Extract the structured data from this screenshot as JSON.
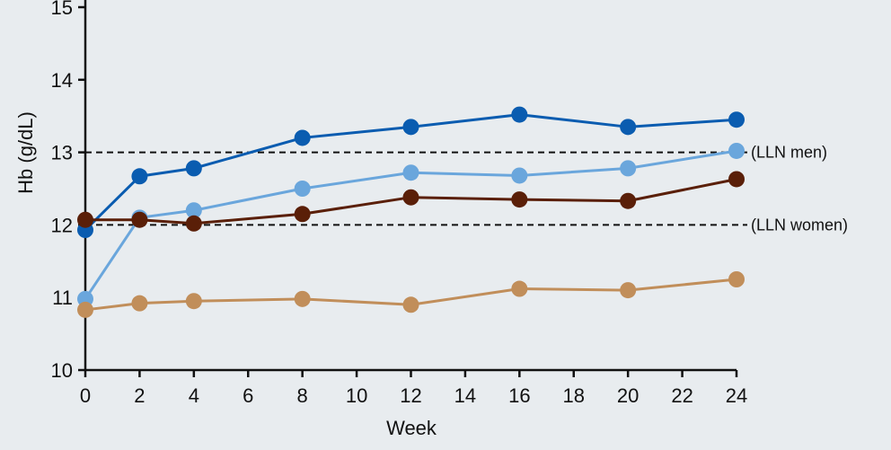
{
  "chart_data": {
    "type": "line",
    "title": "",
    "xlabel": "Week",
    "ylabel": "Hb (g/dL)",
    "xlim": [
      0,
      24
    ],
    "ylim": [
      10,
      15
    ],
    "x_ticks": [
      "0",
      "2",
      "4",
      "6",
      "8",
      "10",
      "12",
      "14",
      "16",
      "18",
      "20",
      "22",
      "24"
    ],
    "y_ticks": [
      "10",
      "11",
      "12",
      "13",
      "14",
      "15"
    ],
    "grid": false,
    "x": [
      0,
      2,
      4,
      8,
      12,
      16,
      20,
      24
    ],
    "series": [
      {
        "color": "#0a5cb0",
        "values": [
          11.93,
          12.67,
          12.78,
          13.2,
          13.35,
          13.52,
          13.35,
          13.45
        ]
      },
      {
        "color": "#6aa6dc",
        "values": [
          10.98,
          12.1,
          12.2,
          12.5,
          12.72,
          12.68,
          12.78,
          13.02
        ]
      },
      {
        "color": "#5a1f08",
        "values": [
          12.07,
          12.07,
          12.02,
          12.15,
          12.38,
          12.35,
          12.33,
          12.63
        ]
      },
      {
        "color": "#c18e5a",
        "values": [
          10.83,
          10.92,
          10.95,
          10.98,
          10.9,
          11.12,
          11.1,
          11.25
        ]
      }
    ],
    "reference_lines": [
      {
        "y": 13,
        "label": "(LLN men)",
        "style": "dashed"
      },
      {
        "y": 12,
        "label": "(LLN women)",
        "style": "dashed"
      }
    ]
  }
}
